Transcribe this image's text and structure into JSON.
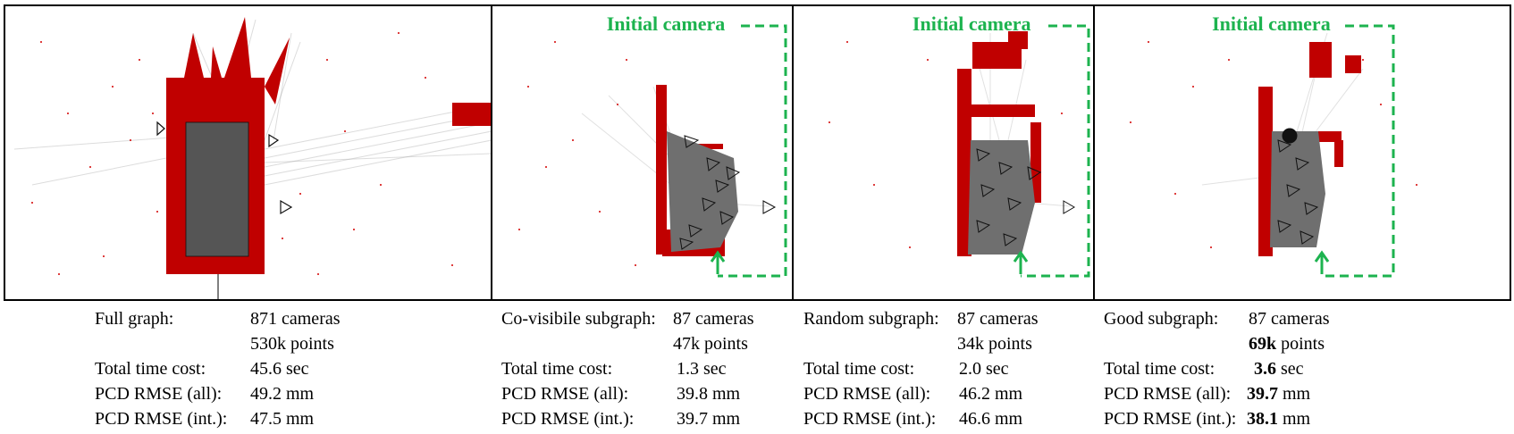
{
  "panels": [
    {
      "id": "full",
      "initial_camera_label": "",
      "caption": {
        "title": "Full graph:",
        "cameras": "871 cameras",
        "points_bold": "",
        "points_rest": "530k points",
        "time_label": "Total time cost:",
        "time_bold": "",
        "time_rest": "45.6 sec",
        "rmse_all_label": "PCD RMSE (all):",
        "rmse_all_bold": "",
        "rmse_all_rest": "49.2 mm",
        "rmse_int_label": "PCD RMSE (int.):",
        "rmse_int_bold": "",
        "rmse_int_rest": "47.5 mm"
      }
    },
    {
      "id": "covisible",
      "initial_camera_label": "Initial camera",
      "caption": {
        "title": "Co-visibile subgraph:",
        "cameras": "87 cameras",
        "points_bold": "",
        "points_rest": "47k points",
        "time_label": "Total time cost:",
        "time_bold": "",
        "time_rest": "1.3 sec",
        "rmse_all_label": "PCD RMSE (all):",
        "rmse_all_bold": "",
        "rmse_all_rest": "39.8 mm",
        "rmse_int_label": "PCD RMSE (int.):",
        "rmse_int_bold": "",
        "rmse_int_rest": "39.7 mm"
      }
    },
    {
      "id": "random",
      "initial_camera_label": "Initial camera",
      "caption": {
        "title": "Random subgraph:",
        "cameras": "87 cameras",
        "points_bold": "",
        "points_rest": "34k points",
        "time_label": "Total time cost:",
        "time_bold": "",
        "time_rest": "2.0 sec",
        "rmse_all_label": "PCD RMSE (all):",
        "rmse_all_bold": "",
        "rmse_all_rest": "46.2 mm",
        "rmse_int_label": "PCD RMSE (int.):",
        "rmse_int_bold": "",
        "rmse_int_rest": "46.6 mm"
      }
    },
    {
      "id": "good",
      "initial_camera_label": "Initial camera",
      "caption": {
        "title": "Good subgraph:",
        "cameras": "87 cameras",
        "points_bold": "69k",
        "points_rest": " points",
        "time_label": "Total time cost:",
        "time_bold": "3.6",
        "time_rest": " sec",
        "rmse_all_label": "PCD RMSE (all):",
        "rmse_all_bold": "39.7",
        "rmse_all_rest": " mm",
        "rmse_int_label": "PCD RMSE (int.):",
        "rmse_int_bold": "38.1",
        "rmse_int_rest": " mm"
      }
    }
  ],
  "colors": {
    "points": "#d40000",
    "initial_camera": "#1db34f",
    "camera_fill": "#777777",
    "camera_stroke": "#111111",
    "ray": "#9a9a9a"
  }
}
